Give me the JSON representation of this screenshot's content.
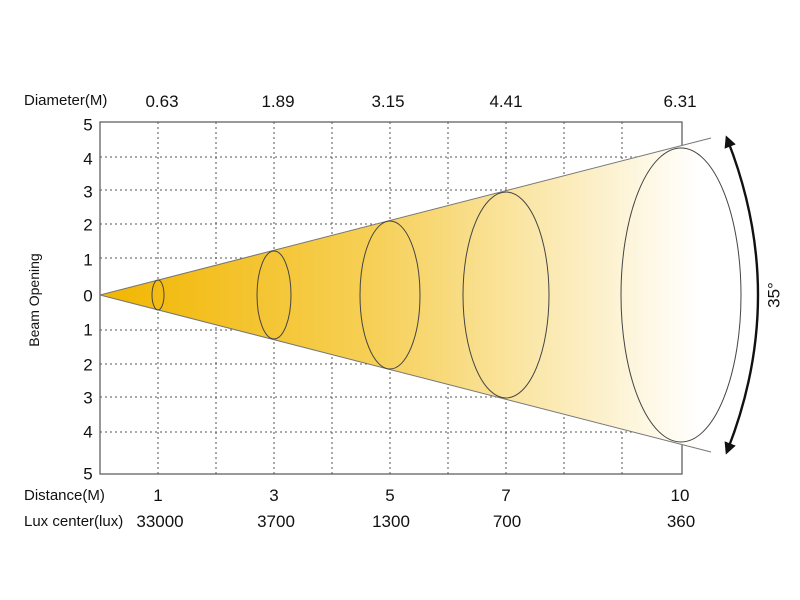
{
  "diagram": {
    "diameter_label": "Diameter(M)",
    "distance_label": "Distance(M)",
    "lux_label": "Lux center(lux)",
    "y_axis_label": "Beam Opening",
    "beam_angle": "35°",
    "y_ticks_upper": [
      "5",
      "4",
      "3",
      "2",
      "1",
      "0"
    ],
    "y_ticks_lower": [
      "1",
      "2",
      "3",
      "4",
      "5"
    ],
    "points": [
      {
        "distance": "1",
        "diameter": "0.63",
        "lux": "33000"
      },
      {
        "distance": "3",
        "diameter": "1.89",
        "lux": "3700"
      },
      {
        "distance": "5",
        "diameter": "3.15",
        "lux": "1300"
      },
      {
        "distance": "7",
        "diameter": "4.41",
        "lux": "700"
      },
      {
        "distance": "10",
        "diameter": "6.31",
        "lux": "360"
      }
    ],
    "colors": {
      "beam_start": "#f2b600",
      "beam_end": "#ffffff",
      "grid": "#555555",
      "outline": "#444444"
    }
  }
}
